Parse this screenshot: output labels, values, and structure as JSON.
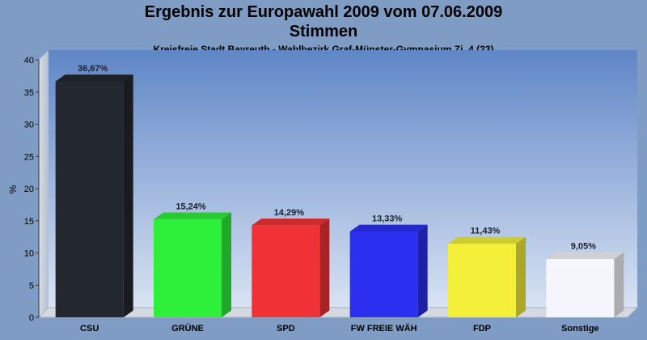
{
  "chart_data": {
    "type": "bar",
    "title": "Ergebnis zur Europawahl 2009 vom 07.06.2009",
    "subtitle": "Stimmen",
    "subtitle2": "Kreisfreie Stadt Bayreuth - Wahlbezirk Graf-Münster-Gymnasium Zi. 4 (23)",
    "ylabel": "%",
    "ylim": [
      0,
      40
    ],
    "yticks": [
      0,
      5,
      10,
      15,
      20,
      25,
      30,
      35,
      40
    ],
    "categories": [
      "CSU",
      "GRÜNE",
      "SPD",
      "FW FREIE WÄH",
      "FDP",
      "Sonstige"
    ],
    "values": [
      36.67,
      15.24,
      14.29,
      13.33,
      11.43,
      9.05
    ],
    "value_labels": [
      "36,67%",
      "15,24%",
      "14,29%",
      "13,33%",
      "11,43%",
      "9,05%"
    ],
    "colors": [
      "#23272f",
      "#2ef03a",
      "#f03236",
      "#2b2ff0",
      "#f4f03a",
      "#f4f6fb"
    ],
    "grid": false
  }
}
